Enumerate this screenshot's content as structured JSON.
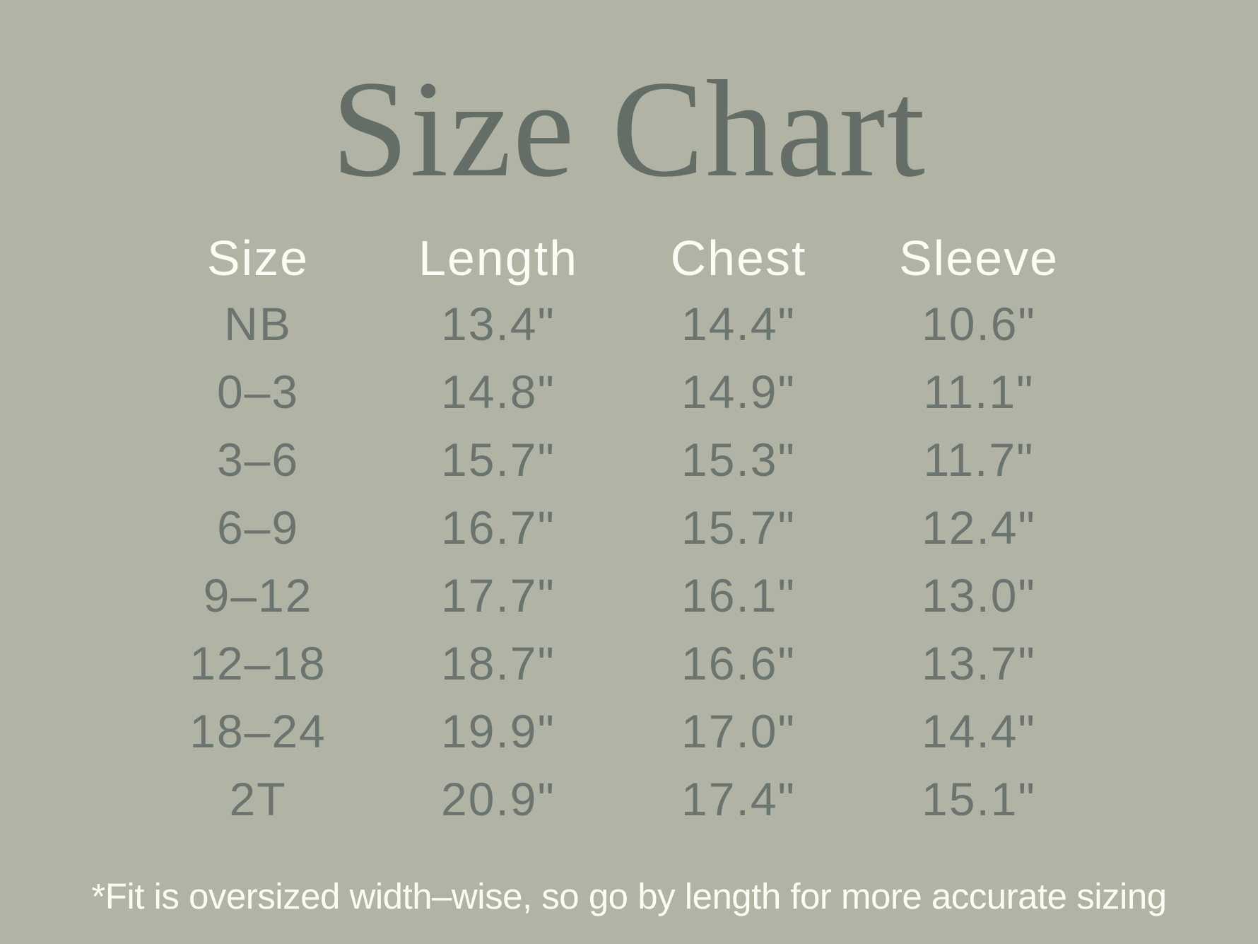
{
  "page": {
    "title": "Size Chart",
    "footnote": "*Fit is oversized width–wise, so go by length for more accurate sizing"
  },
  "colors": {
    "background": "#b1b4a4",
    "title_text": "#646e67",
    "data_text": "#6b746e",
    "light_text": "#fcfcf4"
  },
  "chart_data": {
    "type": "table",
    "title": "Size Chart",
    "columns": [
      "Size",
      "Length",
      "Chest",
      "Sleeve"
    ],
    "rows": [
      [
        "NB",
        "13.4\"",
        "14.4\"",
        "10.6\""
      ],
      [
        "0–3",
        "14.8\"",
        "14.9\"",
        "11.1\""
      ],
      [
        "3–6",
        "15.7\"",
        "15.3\"",
        "11.7\""
      ],
      [
        "6–9",
        "16.7\"",
        "15.7\"",
        "12.4\""
      ],
      [
        "9–12",
        "17.7\"",
        "16.1\"",
        "13.0\""
      ],
      [
        "12–18",
        "18.7\"",
        "16.6\"",
        "13.7\""
      ],
      [
        "18–24",
        "19.9\"",
        "17.0\"",
        "14.4\""
      ],
      [
        "2T",
        "20.9\"",
        "17.4\"",
        "15.1\""
      ]
    ],
    "footnote": "*Fit is oversized width–wise, so go by length for more accurate sizing"
  }
}
